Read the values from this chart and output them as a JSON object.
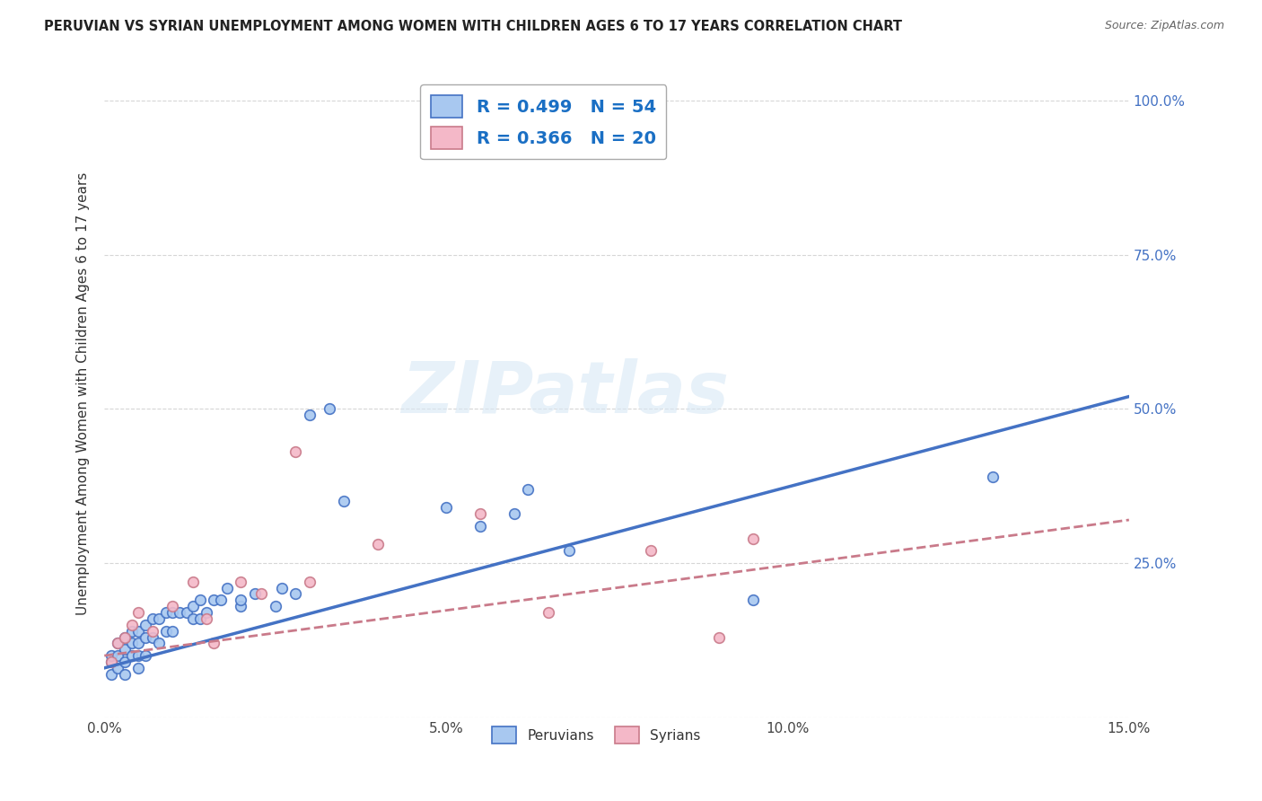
{
  "title": "PERUVIAN VS SYRIAN UNEMPLOYMENT AMONG WOMEN WITH CHILDREN AGES 6 TO 17 YEARS CORRELATION CHART",
  "source": "Source: ZipAtlas.com",
  "xlabel": "",
  "ylabel": "Unemployment Among Women with Children Ages 6 to 17 years",
  "xlim": [
    0.0,
    0.15
  ],
  "ylim": [
    0.0,
    1.05
  ],
  "xticks": [
    0.0,
    0.05,
    0.1,
    0.15
  ],
  "xtick_labels": [
    "0.0%",
    "5.0%",
    "10.0%",
    "15.0%"
  ],
  "yticks": [
    0.0,
    0.25,
    0.5,
    0.75,
    1.0
  ],
  "ytick_labels": [
    "",
    "25.0%",
    "50.0%",
    "75.0%",
    "100.0%"
  ],
  "right_ytick_labels": [
    "",
    "25.0%",
    "50.0%",
    "75.0%",
    "100.0%"
  ],
  "legend_label1": "R = 0.499   N = 54",
  "legend_label2": "R = 0.366   N = 20",
  "peruvian_color": "#a8c8f0",
  "peruvian_line_color": "#4472c4",
  "syrian_color": "#f4b8c8",
  "syrian_line_color": "#c97a8a",
  "peruvian_R": 0.499,
  "peruvian_N": 54,
  "syrian_R": 0.366,
  "syrian_N": 20,
  "background_color": "#ffffff",
  "grid_color": "#cccccc",
  "watermark": "ZIPatlas",
  "peru_line_x0": 0.0,
  "peru_line_y0": 0.08,
  "peru_line_x1": 0.15,
  "peru_line_y1": 0.52,
  "syr_line_x0": 0.0,
  "syr_line_y0": 0.1,
  "syr_line_x1": 0.15,
  "syr_line_y1": 0.32,
  "peruvian_x": [
    0.001,
    0.001,
    0.001,
    0.002,
    0.002,
    0.002,
    0.003,
    0.003,
    0.003,
    0.003,
    0.004,
    0.004,
    0.004,
    0.005,
    0.005,
    0.005,
    0.005,
    0.006,
    0.006,
    0.006,
    0.007,
    0.007,
    0.008,
    0.008,
    0.009,
    0.009,
    0.01,
    0.01,
    0.011,
    0.012,
    0.013,
    0.013,
    0.014,
    0.014,
    0.015,
    0.016,
    0.017,
    0.018,
    0.02,
    0.02,
    0.022,
    0.025,
    0.026,
    0.028,
    0.03,
    0.033,
    0.035,
    0.05,
    0.055,
    0.06,
    0.062,
    0.068,
    0.095,
    0.13
  ],
  "peruvian_y": [
    0.07,
    0.09,
    0.1,
    0.08,
    0.1,
    0.12,
    0.09,
    0.11,
    0.13,
    0.07,
    0.1,
    0.12,
    0.14,
    0.08,
    0.1,
    0.12,
    0.14,
    0.1,
    0.13,
    0.15,
    0.13,
    0.16,
    0.12,
    0.16,
    0.14,
    0.17,
    0.14,
    0.17,
    0.17,
    0.17,
    0.16,
    0.18,
    0.16,
    0.19,
    0.17,
    0.19,
    0.19,
    0.21,
    0.18,
    0.19,
    0.2,
    0.18,
    0.21,
    0.2,
    0.49,
    0.5,
    0.35,
    0.34,
    0.31,
    0.33,
    0.37,
    0.27,
    0.19,
    0.39
  ],
  "syrian_x": [
    0.001,
    0.002,
    0.003,
    0.004,
    0.005,
    0.007,
    0.01,
    0.013,
    0.015,
    0.016,
    0.02,
    0.023,
    0.028,
    0.03,
    0.04,
    0.055,
    0.065,
    0.08,
    0.09,
    0.095
  ],
  "syrian_y": [
    0.09,
    0.12,
    0.13,
    0.15,
    0.17,
    0.14,
    0.18,
    0.22,
    0.16,
    0.12,
    0.22,
    0.2,
    0.43,
    0.22,
    0.28,
    0.33,
    0.17,
    0.27,
    0.13,
    0.29
  ]
}
